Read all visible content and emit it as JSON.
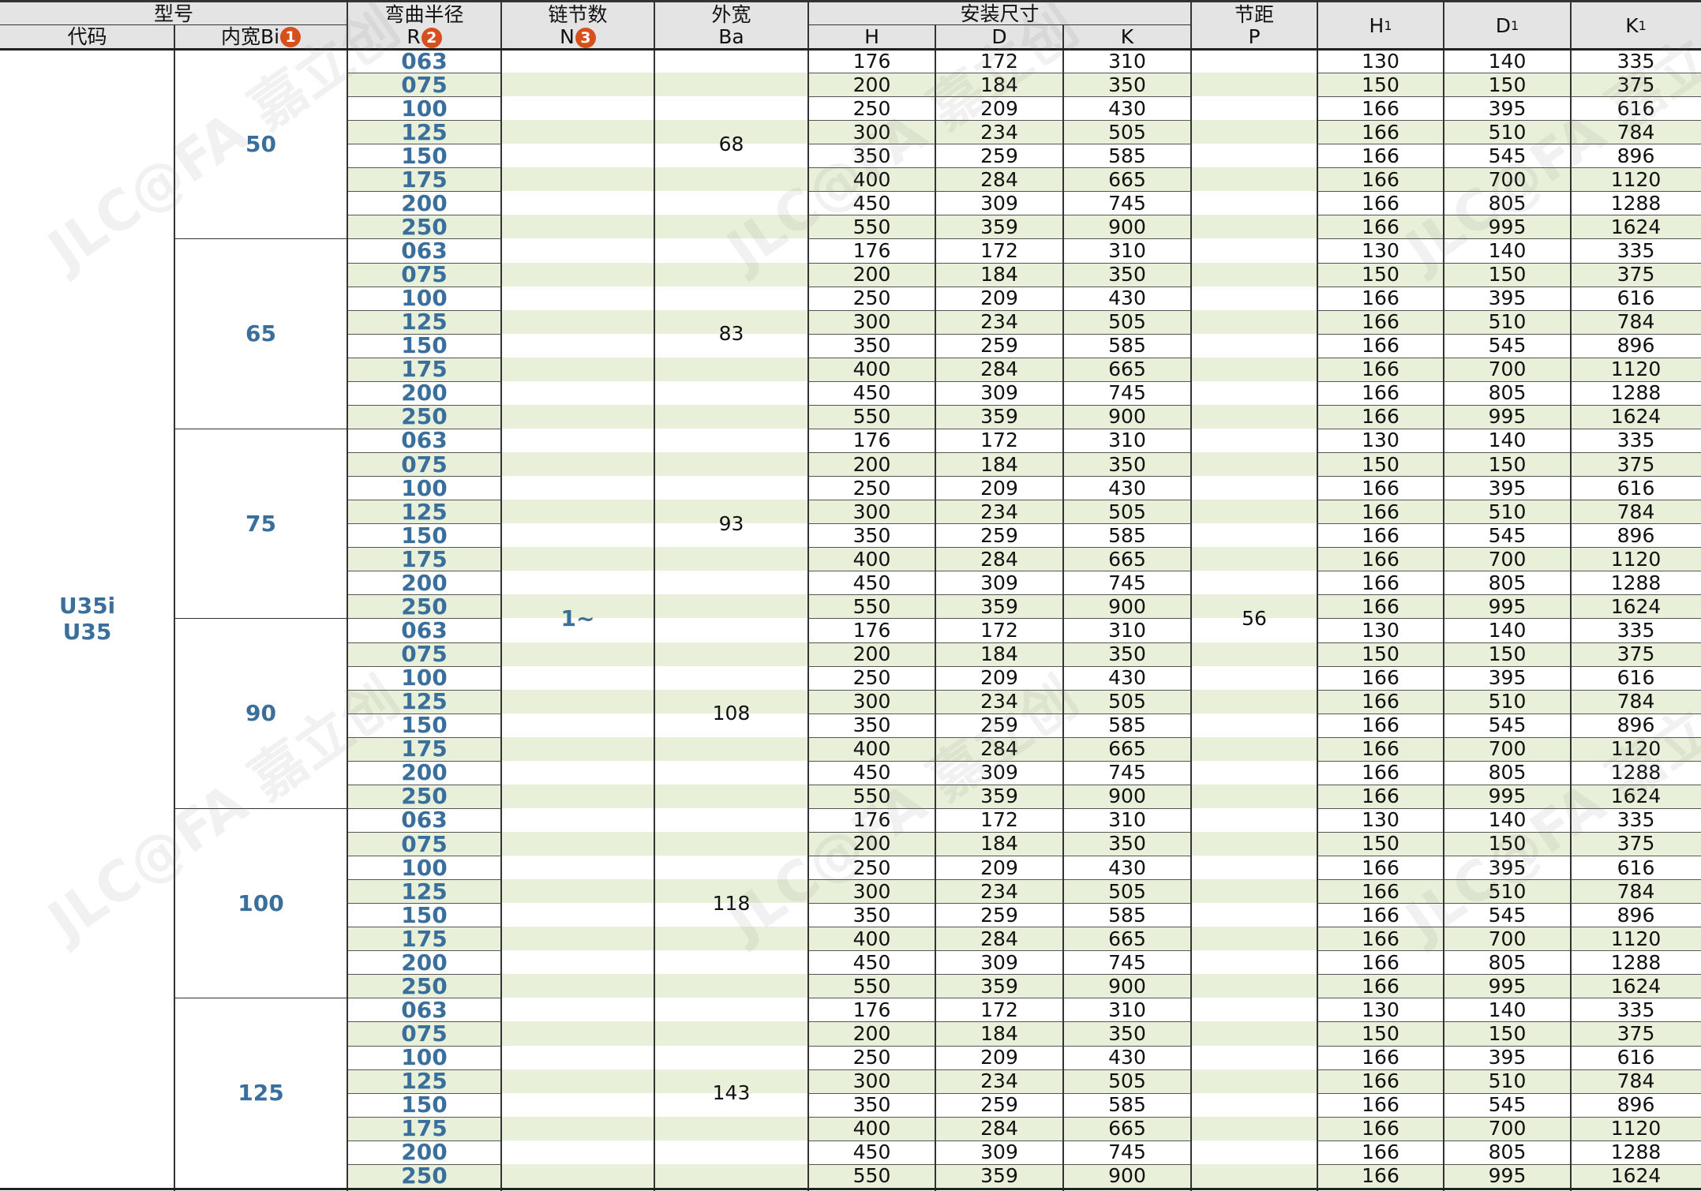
{
  "header": {
    "model": "型号",
    "code": "代码",
    "inner_width": "内宽Bi",
    "badge1": "1",
    "radius": "弯曲半径",
    "radius_sym": "R",
    "badge2": "2",
    "links": "链节数",
    "links_sym": "N",
    "badge3": "3",
    "outer_width": "外宽",
    "outer_sym": "Ba",
    "install": "安装尺寸",
    "h": "H",
    "d": "D",
    "k": "K",
    "pitch": "节距",
    "pitch_sym": "P",
    "h1": "H",
    "d1": "D",
    "k1": "K",
    "sub1": "1"
  },
  "code_lines": [
    "U35i",
    "U35"
  ],
  "links_value": "1~",
  "pitch_value": "56",
  "groups": [
    {
      "bi": "50",
      "ba": "68"
    },
    {
      "bi": "65",
      "ba": "83"
    },
    {
      "bi": "75",
      "ba": "93"
    },
    {
      "bi": "90",
      "ba": "108"
    },
    {
      "bi": "100",
      "ba": "118"
    },
    {
      "bi": "125",
      "ba": "143"
    }
  ],
  "radius_rows": [
    {
      "r": "063",
      "h": "176",
      "d": "172",
      "k": "310",
      "h1": "130",
      "d1": "140",
      "k1": "335"
    },
    {
      "r": "075",
      "h": "200",
      "d": "184",
      "k": "350",
      "h1": "150",
      "d1": "150",
      "k1": "375"
    },
    {
      "r": "100",
      "h": "250",
      "d": "209",
      "k": "430",
      "h1": "166",
      "d1": "395",
      "k1": "616"
    },
    {
      "r": "125",
      "h": "300",
      "d": "234",
      "k": "505",
      "h1": "166",
      "d1": "510",
      "k1": "784"
    },
    {
      "r": "150",
      "h": "350",
      "d": "259",
      "k": "585",
      "h1": "166",
      "d1": "545",
      "k1": "896"
    },
    {
      "r": "175",
      "h": "400",
      "d": "284",
      "k": "665",
      "h1": "166",
      "d1": "700",
      "k1": "1120"
    },
    {
      "r": "200",
      "h": "450",
      "d": "309",
      "k": "745",
      "h1": "166",
      "d1": "805",
      "k1": "1288"
    },
    {
      "r": "250",
      "h": "550",
      "d": "359",
      "k": "900",
      "h1": "166",
      "d1": "995",
      "k1": "1624"
    }
  ],
  "watermark": "JLC@FA 嘉立创FA WWW.JLCFA.COM",
  "colors": {
    "stripe": "#e8f0da",
    "header": "#e4e4e4",
    "accent_text": "#3a6f9c",
    "badge": "#d64f1d"
  }
}
